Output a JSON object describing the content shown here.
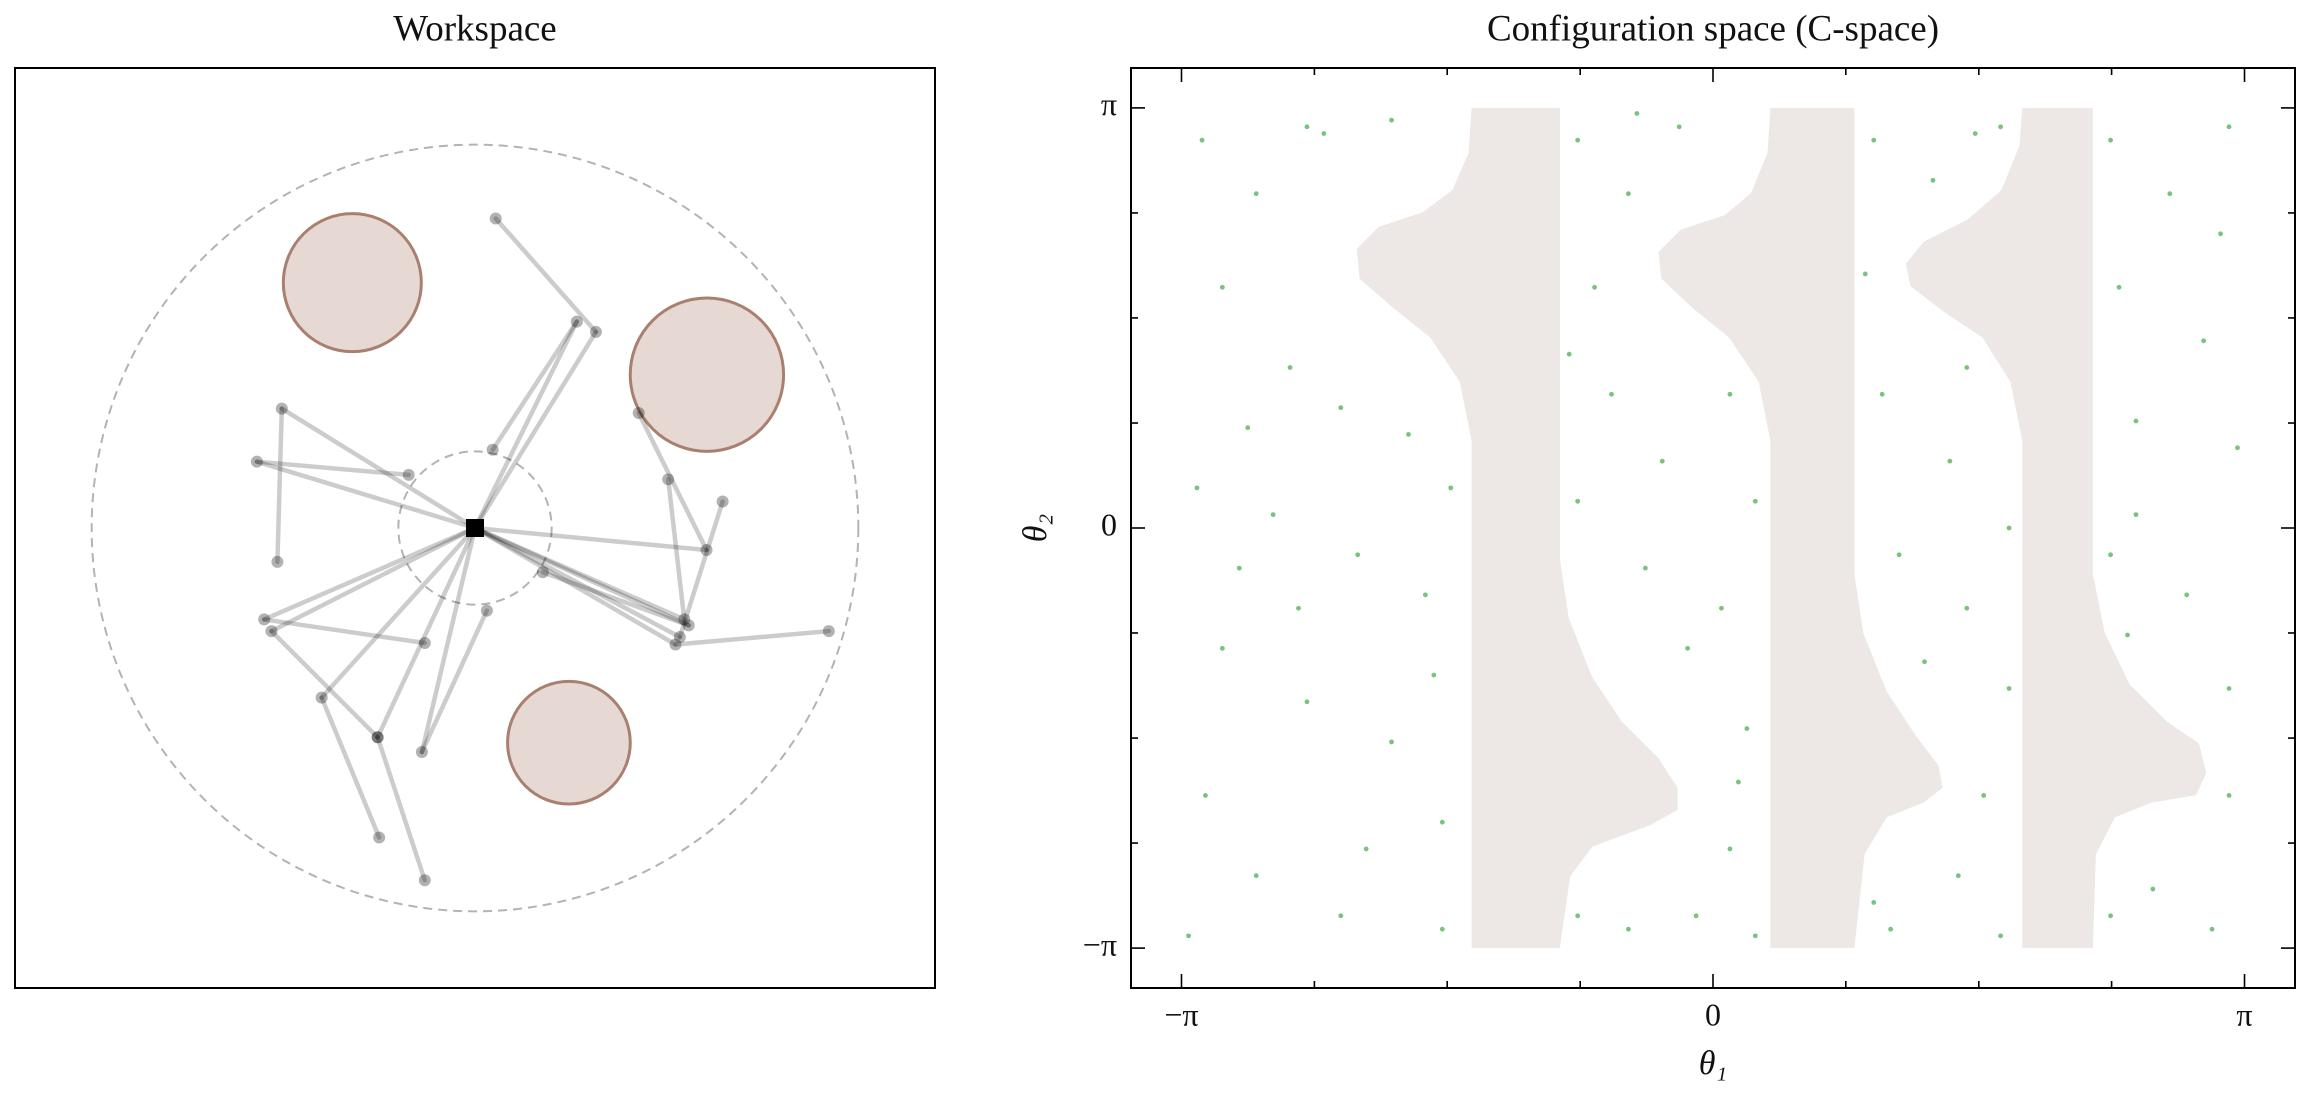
{
  "chart_data": [
    {
      "type": "workspace",
      "title": "Workspace",
      "xlim": [
        -2.4,
        2.4
      ],
      "ylim": [
        -2.4,
        2.4
      ],
      "base": [
        0,
        0
      ],
      "outer_radius": 2.0,
      "inner_radius": 0.4,
      "obstacle_color": "#e6d8d2",
      "obstacle_edge": "#a9806f",
      "arm_color": "#000000",
      "base_color": "#000000",
      "obstacles": [
        {
          "x": -0.64,
          "y": 1.28,
          "r": 0.36
        },
        {
          "x": 1.21,
          "y": 0.8,
          "r": 0.4
        },
        {
          "x": 0.49,
          "y": -1.12,
          "r": 0.32
        }
      ],
      "arm_samples": [
        {
          "elbow": [
            0.631,
            1.023
          ],
          "end": [
            0.108,
            1.615
          ]
        },
        {
          "elbow": [
            0.531,
            1.077
          ],
          "end": [
            0.092,
            0.408
          ]
        },
        {
          "elbow": [
            -1.008,
            0.623
          ],
          "end": [
            -1.031,
            -0.177
          ]
        },
        {
          "elbow": [
            -1.138,
            0.346
          ],
          "end": [
            -0.346,
            0.277
          ]
        },
        {
          "elbow": [
            1.208,
            -0.115
          ],
          "end": [
            0.854,
            0.6
          ]
        },
        {
          "elbow": [
            1.092,
            -0.477
          ],
          "end": [
            1.008,
            0.254
          ]
        },
        {
          "elbow": [
            1.046,
            -0.608
          ],
          "end": [
            1.846,
            -0.538
          ]
        },
        {
          "elbow": [
            1.069,
            -0.569
          ],
          "end": [
            1.292,
            0.138
          ]
        },
        {
          "elbow": [
            1.115,
            -0.508
          ],
          "end": [
            0.354,
            -0.231
          ]
        },
        {
          "elbow": [
            -1.1,
            -0.477
          ],
          "end": [
            -0.262,
            -0.6
          ]
        },
        {
          "elbow": [
            -0.8,
            -0.885
          ],
          "end": [
            -0.5,
            -1.615
          ]
        },
        {
          "elbow": [
            -0.277,
            -1.169
          ],
          "end": [
            0.062,
            -0.431
          ]
        },
        {
          "elbow": [
            -0.508,
            -1.092
          ],
          "end": [
            -0.262,
            -1.838
          ]
        },
        {
          "elbow": [
            -1.062,
            -0.538
          ],
          "end": [
            -0.508,
            -1.092
          ]
        }
      ]
    },
    {
      "type": "cspace",
      "title": "Configuration space (C-space)",
      "xlabel": "θ₁",
      "ylabel": "θ₂",
      "xlim": [
        -3.44,
        3.44
      ],
      "ylim": [
        -3.44,
        3.44
      ],
      "xticks": [
        {
          "value": -3.14159,
          "label": "−π"
        },
        0,
        {
          "value": 3.14159,
          "label": "π"
        }
      ],
      "yticks": [
        {
          "value": -3.14159,
          "label": "−π"
        },
        0,
        {
          "value": 3.14159,
          "label": "π"
        }
      ],
      "xminor": [
        -2.356,
        -1.571,
        -0.785,
        0.785,
        1.571,
        2.356
      ],
      "yminor": [
        -2.356,
        -1.571,
        -0.785,
        0.785,
        1.571,
        2.356
      ],
      "obstacle_color": "#ede7e5",
      "sample_color": "#4caf50",
      "obstacle_regions": [
        [
          [
            -1.427,
            3.14
          ],
          [
            -0.905,
            3.14
          ],
          [
            -0.905,
            -0.232
          ],
          [
            -0.853,
            -0.673
          ],
          [
            -0.714,
            -1.115
          ],
          [
            -0.54,
            -1.446
          ],
          [
            -0.322,
            -1.722
          ],
          [
            -0.209,
            -1.943
          ],
          [
            -0.209,
            -2.108
          ],
          [
            -0.366,
            -2.219
          ],
          [
            -0.714,
            -2.384
          ],
          [
            -0.844,
            -2.605
          ],
          [
            -0.905,
            -3.14
          ],
          [
            -1.427,
            -3.14
          ],
          [
            -1.427,
            0.651
          ],
          [
            -1.497,
            1.093
          ],
          [
            -1.671,
            1.424
          ],
          [
            -1.889,
            1.645
          ],
          [
            -2.089,
            1.865
          ],
          [
            -2.106,
            2.086
          ],
          [
            -1.976,
            2.252
          ],
          [
            -1.715,
            2.362
          ],
          [
            -1.54,
            2.528
          ],
          [
            -1.445,
            2.804
          ]
        ],
        [
          [
            0.339,
            3.14
          ],
          [
            0.836,
            3.14
          ],
          [
            0.836,
            -0.342
          ],
          [
            0.888,
            -0.784
          ],
          [
            1.027,
            -1.225
          ],
          [
            1.201,
            -1.556
          ],
          [
            1.332,
            -1.777
          ],
          [
            1.358,
            -1.943
          ],
          [
            1.245,
            -2.053
          ],
          [
            1.027,
            -2.163
          ],
          [
            0.896,
            -2.439
          ],
          [
            0.836,
            -3.14
          ],
          [
            0.339,
            -3.14
          ],
          [
            0.339,
            0.651
          ],
          [
            0.27,
            1.093
          ],
          [
            0.096,
            1.424
          ],
          [
            -0.122,
            1.645
          ],
          [
            -0.305,
            1.865
          ],
          [
            -0.322,
            2.064
          ],
          [
            -0.191,
            2.23
          ],
          [
            0.07,
            2.34
          ],
          [
            0.226,
            2.506
          ],
          [
            0.322,
            2.804
          ]
        ],
        [
          [
            1.828,
            3.14
          ],
          [
            2.245,
            3.14
          ],
          [
            2.245,
            -0.342
          ],
          [
            2.315,
            -0.784
          ],
          [
            2.463,
            -1.17
          ],
          [
            2.681,
            -1.446
          ],
          [
            2.872,
            -1.611
          ],
          [
            2.916,
            -1.832
          ],
          [
            2.855,
            -1.998
          ],
          [
            2.594,
            -2.053
          ],
          [
            2.376,
            -2.163
          ],
          [
            2.263,
            -2.439
          ],
          [
            2.245,
            -3.14
          ],
          [
            1.828,
            -3.14
          ],
          [
            1.828,
            0.651
          ],
          [
            1.758,
            1.093
          ],
          [
            1.593,
            1.424
          ],
          [
            1.358,
            1.623
          ],
          [
            1.166,
            1.81
          ],
          [
            1.14,
            1.976
          ],
          [
            1.245,
            2.141
          ],
          [
            1.506,
            2.307
          ],
          [
            1.706,
            2.528
          ],
          [
            1.811,
            2.859
          ]
        ]
      ],
      "free_samples": {
        "x": [
          -3.02,
          -2.7,
          -2.4,
          -2.9,
          -2.5,
          -2.2,
          -1.8,
          -3.05,
          -2.6,
          -2.1,
          -1.7,
          -2.9,
          -2.4,
          -1.9,
          -1.6,
          -3.0,
          -2.7,
          -2.2,
          -1.6,
          -2.8,
          -2.3,
          -1.9,
          -3.1,
          -1.55,
          -2.45,
          -2.05,
          -2.75,
          -1.65,
          -0.8,
          -0.5,
          -0.2,
          -0.7,
          -0.6,
          -0.3,
          0.1,
          -0.8,
          -0.4,
          0.05,
          0.2,
          0.1,
          -0.1,
          -0.5,
          -0.8,
          0.25,
          -0.15,
          0.25,
          -0.45,
          0.15,
          -0.85,
          0.95,
          1.3,
          1.7,
          0.9,
          1.0,
          1.4,
          1.5,
          1.1,
          1.5,
          1.75,
          1.6,
          1.45,
          1.05,
          1.7,
          0.95,
          1.25,
          1.75,
          1.55,
          2.35,
          2.7,
          3.05,
          2.4,
          2.9,
          3.1,
          2.5,
          2.35,
          2.8,
          3.05,
          3.05,
          2.6,
          2.95,
          2.35,
          2.5,
          2.45,
          3.0
        ],
        "y": [
          2.9,
          2.5,
          3.0,
          1.8,
          1.2,
          0.9,
          0.7,
          0.3,
          0.1,
          -0.2,
          -0.5,
          -0.9,
          -1.3,
          -1.6,
          -2.2,
          -2.0,
          -2.6,
          -2.9,
          -3.0,
          -0.3,
          2.95,
          3.05,
          -3.05,
          0.3,
          -0.6,
          -2.4,
          0.75,
          -1.1,
          2.9,
          2.5,
          3.0,
          1.8,
          1.0,
          0.5,
          1.0,
          0.2,
          -0.3,
          -0.6,
          -1.5,
          -2.4,
          -2.9,
          -3.0,
          -2.9,
          -3.05,
          -0.9,
          0.2,
          3.1,
          -1.9,
          1.3,
          2.9,
          2.6,
          3.0,
          1.9,
          1.0,
          0.5,
          1.2,
          -0.2,
          -0.6,
          -1.2,
          -2.0,
          -2.6,
          -3.0,
          -3.05,
          -2.8,
          -1.0,
          0.0,
          2.95,
          2.9,
          2.5,
          3.0,
          1.8,
          1.4,
          0.6,
          0.8,
          -0.2,
          -0.5,
          -1.2,
          -2.0,
          -2.7,
          -3.0,
          -2.9,
          0.1,
          -0.8,
          2.2
        ]
      }
    }
  ]
}
